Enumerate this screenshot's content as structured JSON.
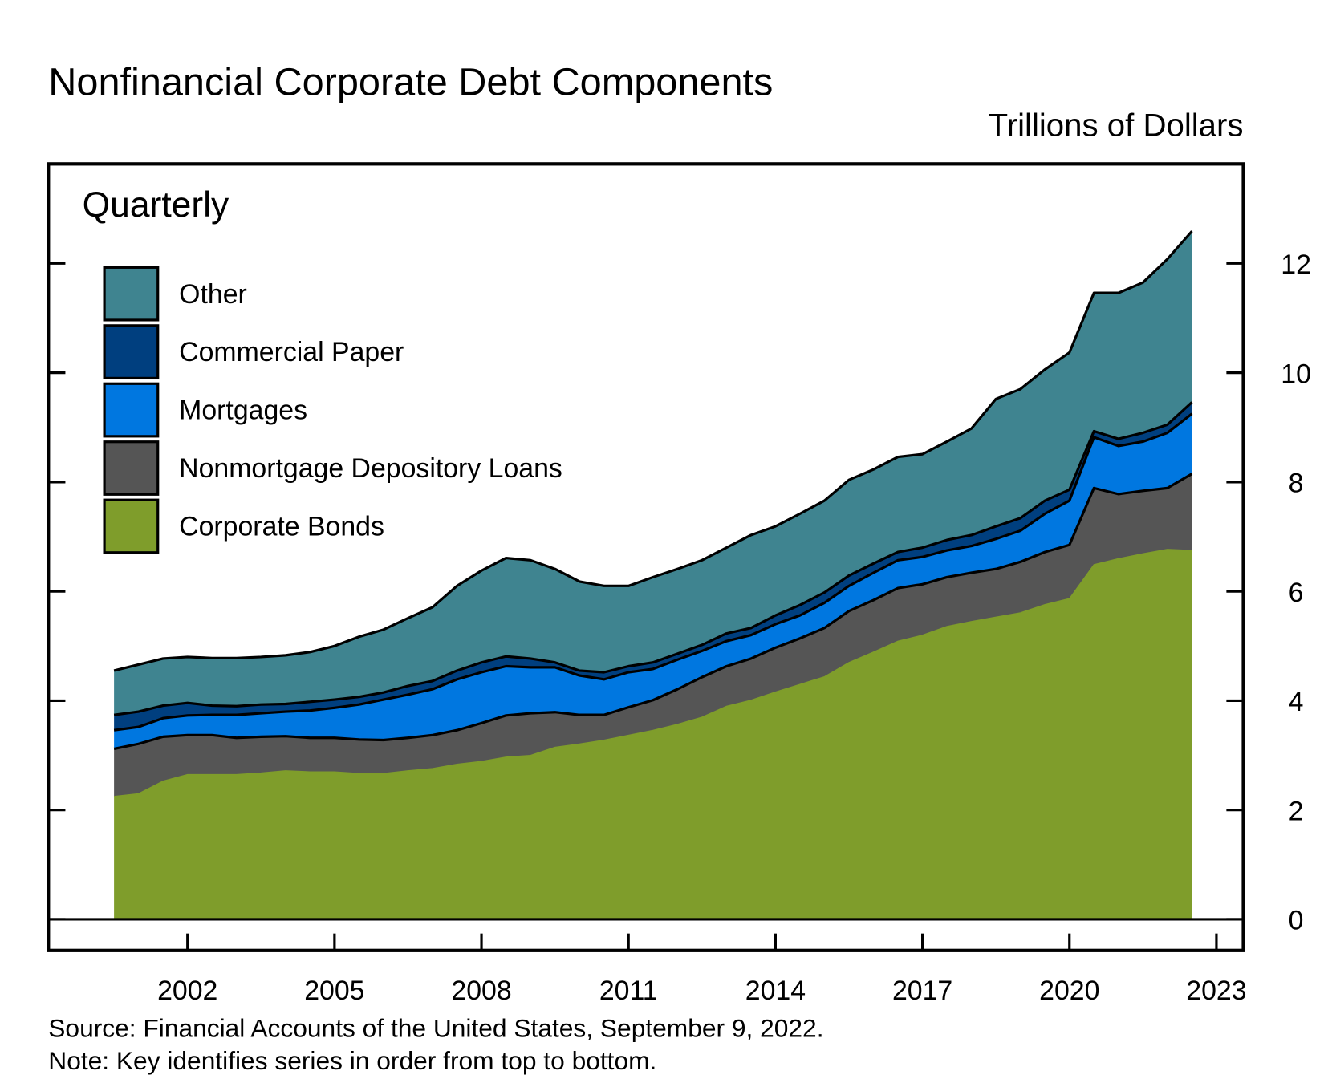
{
  "chart_data": {
    "type": "stacked-area",
    "title": "Nonfinancial Corporate Debt Components",
    "y_label": "Trillions of Dollars",
    "annotation": "Quarterly",
    "source": "Source: Financial Accounts of the United States, September 9, 2022.",
    "note": "Note: Key identifies series in order from top to bottom.",
    "x": [
      2000.5,
      2001,
      2001.5,
      2002,
      2002.5,
      2003,
      2003.5,
      2004,
      2004.5,
      2005,
      2005.5,
      2006,
      2006.5,
      2007,
      2007.5,
      2008,
      2008.5,
      2009,
      2009.5,
      2010,
      2010.5,
      2011,
      2011.5,
      2012,
      2012.5,
      2013,
      2013.5,
      2014,
      2014.5,
      2015,
      2015.5,
      2016,
      2016.5,
      2017,
      2017.5,
      2018,
      2018.5,
      2019,
      2019.5,
      2020,
      2020.5,
      2021,
      2021.5,
      2022,
      2022.5
    ],
    "series": [
      {
        "name": "Corporate Bonds",
        "color": "#7f9d2b",
        "values": [
          2.25,
          2.3,
          2.53,
          2.65,
          2.65,
          2.65,
          2.68,
          2.72,
          2.7,
          2.7,
          2.67,
          2.67,
          2.72,
          2.76,
          2.84,
          2.89,
          2.97,
          3.0,
          3.15,
          3.21,
          3.28,
          3.37,
          3.46,
          3.57,
          3.7,
          3.9,
          4.01,
          4.16,
          4.3,
          4.44,
          4.7,
          4.89,
          5.09,
          5.2,
          5.36,
          5.45,
          5.53,
          5.61,
          5.76,
          5.87,
          6.49,
          6.6,
          6.69,
          6.77,
          6.75
        ]
      },
      {
        "name": "Nonmortgage Depository Loans",
        "color": "#555555",
        "values": [
          0.87,
          0.91,
          0.81,
          0.72,
          0.72,
          0.67,
          0.66,
          0.63,
          0.62,
          0.62,
          0.62,
          0.61,
          0.6,
          0.61,
          0.62,
          0.7,
          0.76,
          0.77,
          0.64,
          0.53,
          0.46,
          0.51,
          0.55,
          0.64,
          0.73,
          0.73,
          0.76,
          0.81,
          0.84,
          0.89,
          0.94,
          0.95,
          0.97,
          0.93,
          0.9,
          0.89,
          0.88,
          0.93,
          0.96,
          0.98,
          1.4,
          1.18,
          1.15,
          1.12,
          1.4
        ]
      },
      {
        "name": "Mortgages",
        "color": "#0077e0",
        "values": [
          0.34,
          0.31,
          0.34,
          0.36,
          0.37,
          0.42,
          0.43,
          0.45,
          0.5,
          0.55,
          0.64,
          0.74,
          0.79,
          0.84,
          0.93,
          0.93,
          0.9,
          0.84,
          0.82,
          0.72,
          0.65,
          0.64,
          0.57,
          0.54,
          0.48,
          0.46,
          0.43,
          0.43,
          0.42,
          0.46,
          0.46,
          0.5,
          0.51,
          0.5,
          0.49,
          0.49,
          0.55,
          0.57,
          0.7,
          0.81,
          0.93,
          0.88,
          0.9,
          1.01,
          1.1
        ]
      },
      {
        "name": "Commercial Paper",
        "color": "#003f7f",
        "values": [
          0.28,
          0.28,
          0.23,
          0.23,
          0.17,
          0.16,
          0.16,
          0.14,
          0.16,
          0.15,
          0.14,
          0.13,
          0.16,
          0.15,
          0.16,
          0.18,
          0.18,
          0.16,
          0.09,
          0.09,
          0.13,
          0.11,
          0.12,
          0.11,
          0.11,
          0.14,
          0.13,
          0.16,
          0.19,
          0.19,
          0.19,
          0.17,
          0.15,
          0.17,
          0.19,
          0.2,
          0.23,
          0.23,
          0.24,
          0.2,
          0.11,
          0.13,
          0.16,
          0.15,
          0.21
        ]
      },
      {
        "name": "Other",
        "color": "#3f8490",
        "values": [
          0.81,
          0.86,
          0.86,
          0.84,
          0.87,
          0.88,
          0.87,
          0.89,
          0.91,
          0.98,
          1.1,
          1.15,
          1.24,
          1.35,
          1.55,
          1.68,
          1.8,
          1.8,
          1.71,
          1.63,
          1.58,
          1.47,
          1.56,
          1.55,
          1.55,
          1.57,
          1.7,
          1.63,
          1.67,
          1.68,
          1.75,
          1.72,
          1.74,
          1.71,
          1.8,
          1.95,
          2.33,
          2.36,
          2.4,
          2.51,
          2.53,
          2.67,
          2.75,
          3.03,
          3.13
        ]
      }
    ],
    "xlim": [
      1999.16,
      2023.55
    ],
    "xticks": [
      2002,
      2005,
      2008,
      2011,
      2014,
      2017,
      2020,
      2023
    ],
    "ylim": [
      -0.57,
      13.82
    ],
    "yticks": [
      0,
      2,
      4,
      6,
      8,
      10,
      12
    ]
  }
}
